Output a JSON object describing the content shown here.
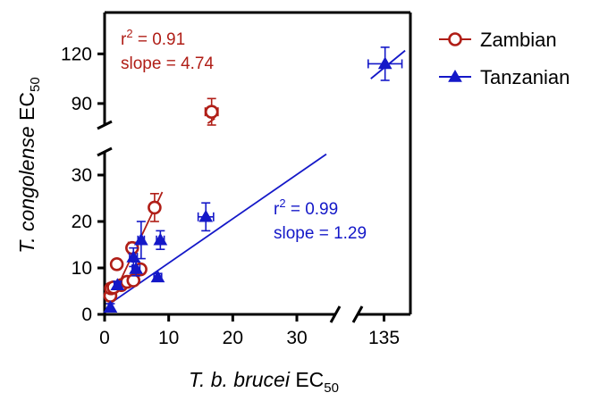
{
  "chart_data": {
    "type": "scatter",
    "xlabel": {
      "italic": "T. b. brucei",
      "main": " EC",
      "sub": "50"
    },
    "ylabel": {
      "italic": "T. congolense",
      "main": " EC",
      "sub": "50"
    },
    "x_ticks": [
      "0",
      "10",
      "20",
      "30",
      "135"
    ],
    "y_ticks_lower": [
      "0",
      "10",
      "20",
      "30"
    ],
    "y_ticks_upper": [
      "90",
      "120"
    ],
    "x_segments": [
      [
        0,
        36
      ],
      [
        130,
        140
      ]
    ],
    "y_segments": [
      [
        0,
        35
      ],
      [
        77,
        145
      ]
    ],
    "series": [
      {
        "name": "Zambian",
        "marker": "open-circle",
        "color": "#b01e17",
        "points": [
          {
            "x": 0.9,
            "y": 4.0,
            "xerr": 0.4,
            "yerr": 1.0
          },
          {
            "x": 1.0,
            "y": 5.6,
            "xerr": 0.4,
            "yerr": 1.0
          },
          {
            "x": 1.4,
            "y": 5.8,
            "xerr": 0.5,
            "yerr": 0.8
          },
          {
            "x": 1.9,
            "y": 10.8,
            "xerr": 0.6,
            "yerr": 1.0
          },
          {
            "x": 2.6,
            "y": 6.3,
            "xerr": 0.5,
            "yerr": 1.0
          },
          {
            "x": 3.5,
            "y": 7.0,
            "xerr": 0.5,
            "yerr": 1.0
          },
          {
            "x": 4.3,
            "y": 14.3,
            "xerr": 0.7,
            "yerr": 1.2
          },
          {
            "x": 4.5,
            "y": 7.3,
            "xerr": 0.6,
            "yerr": 1.0
          },
          {
            "x": 5.6,
            "y": 9.7,
            "xerr": 0.6,
            "yerr": 1.0
          },
          {
            "x": 7.8,
            "y": 23.0,
            "xerr": 0.6,
            "yerr": 3.0
          },
          {
            "x": 16.7,
            "y": 85.0,
            "xerr": 1.0,
            "yerr": 8.0
          }
        ],
        "fit": {
          "r2": "0.91",
          "slope": "4.74",
          "x1": 0.3,
          "y1": 1.0,
          "x2": 9.0,
          "y2": 36.5
        }
      },
      {
        "name": "Tanzanian",
        "marker": "filled-triangle",
        "color": "#1418c8",
        "points": [
          {
            "x": 0.9,
            "y": 1.5,
            "xerr": 0.3,
            "yerr": 0.8
          },
          {
            "x": 2.0,
            "y": 6.3,
            "xerr": 0.5,
            "yerr": 0.8
          },
          {
            "x": 4.5,
            "y": 12.3,
            "xerr": 0.6,
            "yerr": 2.0
          },
          {
            "x": 4.9,
            "y": 9.8,
            "xerr": 0.6,
            "yerr": 1.5
          },
          {
            "x": 5.7,
            "y": 16.0,
            "xerr": 0.5,
            "yerr": 4.0
          },
          {
            "x": 8.3,
            "y": 8.0,
            "xerr": 0.6,
            "yerr": 0.8
          },
          {
            "x": 8.7,
            "y": 16.0,
            "xerr": 0.6,
            "yerr": 2.0
          },
          {
            "x": 15.8,
            "y": 21.0,
            "xerr": 1.2,
            "yerr": 3.0
          },
          {
            "x": 135.2,
            "y": 114.0,
            "xerr": 3.2,
            "yerr": 10.0
          }
        ],
        "fit": {
          "r2": "0.99",
          "slope": "1.29",
          "x1": 0.5,
          "y1": 2.0,
          "x2": 34.6,
          "y2": 34.5
        }
      }
    ],
    "annotations": [
      {
        "series": 0,
        "line1": "r2 = 0.91",
        "line2": "slope = 4.74"
      },
      {
        "series": 1,
        "line1": "r2 = 0.99",
        "line2": "slope = 1.29"
      }
    ],
    "legend_position": "right"
  }
}
